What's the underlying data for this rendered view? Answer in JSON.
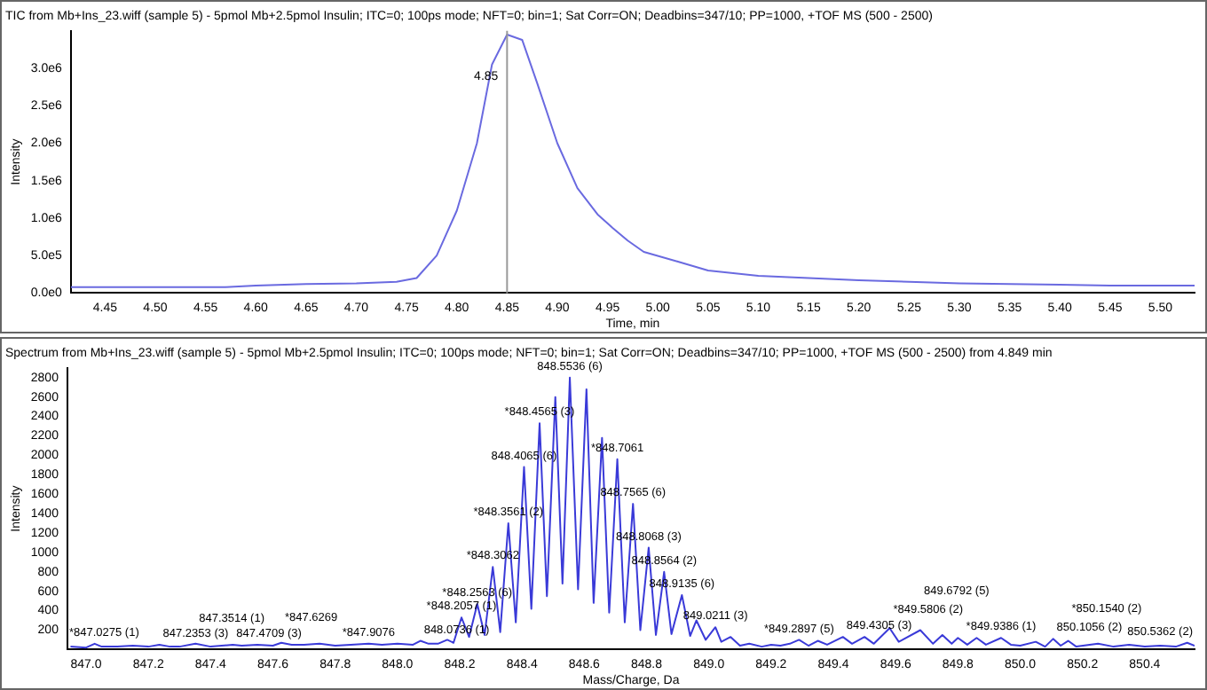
{
  "chart_data": [
    {
      "type": "line",
      "title": "TIC from Mb+Ins_23.wiff (sample 5) - 5pmol Mb+2.5pmol Insulin; ITC=0; 100ps mode; NFT=0; bin=1; Sat Corr=ON; Deadbins=347/10; PP=1000, +TOF MS (500 - 2500)",
      "xlabel": "Time, min",
      "ylabel": "Intensity",
      "x": [
        4.416,
        4.45,
        4.5,
        4.55,
        4.57,
        4.6,
        4.65,
        4.7,
        4.74,
        4.76,
        4.78,
        4.8,
        4.82,
        4.835,
        4.85,
        4.865,
        4.88,
        4.9,
        4.92,
        4.94,
        4.955,
        4.97,
        4.986,
        5.02,
        5.05,
        5.1,
        5.15,
        5.2,
        5.25,
        5.3,
        5.35,
        5.4,
        5.45,
        5.5,
        5.534
      ],
      "series": [
        {
          "color": "#6a6ae0",
          "values": [
            80000,
            80000,
            80000,
            80000,
            80000,
            100000,
            120000,
            130000,
            150000,
            200000,
            500000,
            1100000,
            2000000,
            3050000,
            3450000,
            3380000,
            2800000,
            2000000,
            1400000,
            1050000,
            870000,
            700000,
            550000,
            420000,
            300000,
            230000,
            200000,
            170000,
            150000,
            130000,
            120000,
            110000,
            100000,
            100000,
            100000
          ]
        }
      ],
      "xlim": [
        4.416,
        5.534
      ],
      "ylim": [
        0,
        3500000
      ],
      "xticks": [
        {
          "value": 4.45,
          "label": "4.45"
        },
        {
          "value": 4.5,
          "label": "4.50"
        },
        {
          "value": 4.55,
          "label": "4.55"
        },
        {
          "value": 4.6,
          "label": "4.60"
        },
        {
          "value": 4.65,
          "label": "4.65"
        },
        {
          "value": 4.7,
          "label": "4.70"
        },
        {
          "value": 4.75,
          "label": "4.75"
        },
        {
          "value": 4.8,
          "label": "4.80"
        },
        {
          "value": 4.85,
          "label": "4.85"
        },
        {
          "value": 4.9,
          "label": "4.90"
        },
        {
          "value": 4.95,
          "label": "4.95"
        },
        {
          "value": 5.0,
          "label": "5.00"
        },
        {
          "value": 5.05,
          "label": "5.05"
        },
        {
          "value": 5.1,
          "label": "5.10"
        },
        {
          "value": 5.15,
          "label": "5.15"
        },
        {
          "value": 5.2,
          "label": "5.20"
        },
        {
          "value": 5.25,
          "label": "5.25"
        },
        {
          "value": 5.3,
          "label": "5.30"
        },
        {
          "value": 5.35,
          "label": "5.35"
        },
        {
          "value": 5.4,
          "label": "5.40"
        },
        {
          "value": 5.45,
          "label": "5.45"
        },
        {
          "value": 5.5,
          "label": "5.50"
        }
      ],
      "yticks": [
        {
          "value": 0,
          "label": "0.0e0"
        },
        {
          "value": 500000,
          "label": "5.0e5"
        },
        {
          "value": 1000000,
          "label": "1.0e6"
        },
        {
          "value": 1500000,
          "label": "1.5e6"
        },
        {
          "value": 2000000,
          "label": "2.0e6"
        },
        {
          "value": 2500000,
          "label": "2.5e6"
        },
        {
          "value": 3000000,
          "label": "3.0e6"
        }
      ],
      "ref_lines": [
        {
          "axis": "x",
          "value": 4.85,
          "label": "4.85",
          "color": "#999999"
        }
      ],
      "grid": false,
      "legend": false,
      "marker": "none",
      "line_style": "solid"
    },
    {
      "type": "line",
      "title": "Spectrum from Mb+Ins_23.wiff (sample 5) - 5pmol Mb+2.5pmol Insulin; ITC=0; 100ps mode; NFT=0; bin=1; Sat Corr=ON; Deadbins=347/10; PP=1000, +TOF MS (500 - 2500) from 4.849 min",
      "xlabel": "Mass/Charge, Da",
      "ylabel": "Intensity",
      "x": [
        846.95,
        847.0,
        847.0275,
        847.05,
        847.1,
        847.15,
        847.2,
        847.2353,
        847.27,
        847.3,
        847.3514,
        847.4,
        847.4709,
        847.5,
        847.55,
        847.6,
        847.6269,
        847.66,
        847.7,
        847.75,
        847.8,
        847.85,
        847.9076,
        847.95,
        848.0,
        848.05,
        848.0736,
        848.1,
        848.13,
        848.16,
        848.18,
        848.2057,
        848.23,
        848.2563,
        848.28,
        848.3062,
        848.33,
        848.3561,
        848.38,
        848.4065,
        848.43,
        848.4565,
        848.48,
        848.507,
        848.53,
        848.5536,
        848.58,
        848.607,
        848.63,
        848.657,
        848.68,
        848.7061,
        848.73,
        848.7565,
        848.78,
        848.8068,
        848.83,
        848.8564,
        848.88,
        848.9135,
        848.94,
        848.96,
        848.99,
        849.0211,
        849.04,
        849.07,
        849.1,
        849.13,
        849.17,
        849.2,
        849.23,
        849.26,
        849.2897,
        849.32,
        849.35,
        849.38,
        849.4305,
        849.46,
        849.5,
        849.53,
        849.5806,
        849.61,
        849.6792,
        849.72,
        849.75,
        849.78,
        849.8,
        849.83,
        849.86,
        849.89,
        849.9386,
        849.97,
        850.0,
        850.05,
        850.08,
        850.1056,
        850.13,
        850.154,
        850.18,
        850.25,
        850.3,
        850.35,
        850.4,
        850.45,
        850.5,
        850.5362,
        850.56
      ],
      "series": [
        {
          "color": "#3a3ad8",
          "values": [
            30,
            20,
            60,
            30,
            30,
            40,
            30,
            50,
            30,
            30,
            60,
            30,
            50,
            40,
            50,
            40,
            70,
            50,
            50,
            60,
            40,
            50,
            60,
            50,
            60,
            50,
            90,
            60,
            60,
            100,
            70,
            330,
            130,
            470,
            150,
            850,
            180,
            1300,
            280,
            1880,
            420,
            2330,
            550,
            2600,
            680,
            2800,
            620,
            2680,
            480,
            2180,
            380,
            1960,
            280,
            1500,
            200,
            1050,
            150,
            800,
            160,
            560,
            140,
            300,
            100,
            230,
            80,
            130,
            40,
            60,
            30,
            50,
            40,
            60,
            100,
            40,
            90,
            50,
            130,
            60,
            130,
            60,
            220,
            80,
            200,
            60,
            150,
            60,
            120,
            50,
            120,
            50,
            120,
            50,
            40,
            80,
            30,
            110,
            40,
            90,
            30,
            60,
            30,
            50,
            30,
            40,
            30,
            70,
            40
          ]
        }
      ],
      "xlim": [
        846.94,
        850.56
      ],
      "ylim": [
        0,
        2900
      ],
      "xticks": [
        {
          "value": 847.0,
          "label": "847.0"
        },
        {
          "value": 847.2,
          "label": "847.2"
        },
        {
          "value": 847.4,
          "label": "847.4"
        },
        {
          "value": 847.6,
          "label": "847.6"
        },
        {
          "value": 847.8,
          "label": "847.8"
        },
        {
          "value": 848.0,
          "label": "848.0"
        },
        {
          "value": 848.2,
          "label": "848.2"
        },
        {
          "value": 848.4,
          "label": "848.4"
        },
        {
          "value": 848.6,
          "label": "848.6"
        },
        {
          "value": 848.8,
          "label": "848.8"
        },
        {
          "value": 849.0,
          "label": "849.0"
        },
        {
          "value": 849.2,
          "label": "849.2"
        },
        {
          "value": 849.4,
          "label": "849.4"
        },
        {
          "value": 849.6,
          "label": "849.6"
        },
        {
          "value": 849.8,
          "label": "849.8"
        },
        {
          "value": 850.0,
          "label": "850.0"
        },
        {
          "value": 850.2,
          "label": "850.2"
        },
        {
          "value": 850.4,
          "label": "850.4"
        }
      ],
      "yticks": [
        200,
        400,
        600,
        800,
        1000,
        1200,
        1400,
        1600,
        1800,
        2000,
        2200,
        2400,
        2600,
        2800
      ],
      "annotations": [
        {
          "text": "*847.0275 (1)",
          "x": 847.0275,
          "y": 60
        },
        {
          "text": "847.2353 (3)",
          "x": 847.2353,
          "y": 50
        },
        {
          "text": "847.3514 (1)",
          "x": 847.3514,
          "y": 60
        },
        {
          "text": "847.4709 (3)",
          "x": 847.4709,
          "y": 50
        },
        {
          "text": "*847.6269",
          "x": 847.6269,
          "y": 70
        },
        {
          "text": "*847.9076",
          "x": 847.9076,
          "y": 60
        },
        {
          "text": "848.0736 (1)",
          "x": 848.0736,
          "y": 90
        },
        {
          "text": "*848.2057 (1)",
          "x": 848.2057,
          "y": 330
        },
        {
          "text": "*848.2563 (6)",
          "x": 848.2563,
          "y": 470
        },
        {
          "text": "*848.3062",
          "x": 848.3062,
          "y": 850
        },
        {
          "text": "*848.3561 (2)",
          "x": 848.3561,
          "y": 1300
        },
        {
          "text": "848.4065 (6)",
          "x": 848.4065,
          "y": 1880
        },
        {
          "text": "*848.4565 (3)",
          "x": 848.4565,
          "y": 2330
        },
        {
          "text": "848.5536 (6)",
          "x": 848.5536,
          "y": 2800
        },
        {
          "text": "*848.7061",
          "x": 848.7061,
          "y": 1960
        },
        {
          "text": "848.7565 (6)",
          "x": 848.7565,
          "y": 1500
        },
        {
          "text": "848.8068 (3)",
          "x": 848.8068,
          "y": 1050
        },
        {
          "text": "848.8564 (2)",
          "x": 848.8564,
          "y": 800
        },
        {
          "text": "848.9135 (6)",
          "x": 848.9135,
          "y": 560
        },
        {
          "text": "849.0211 (3)",
          "x": 849.0211,
          "y": 230
        },
        {
          "text": "*849.2897 (5)",
          "x": 849.2897,
          "y": 100
        },
        {
          "text": "849.4305 (3)",
          "x": 849.4305,
          "y": 130
        },
        {
          "text": "*849.5806 (2)",
          "x": 849.5806,
          "y": 220
        },
        {
          "text": "849.6792 (5)",
          "x": 849.6792,
          "y": 200
        },
        {
          "text": "*849.9386 (1)",
          "x": 849.9386,
          "y": 120
        },
        {
          "text": "850.1056 (2)",
          "x": 850.1056,
          "y": 110
        },
        {
          "text": "*850.1540 (2)",
          "x": 850.154,
          "y": 90
        },
        {
          "text": "850.5362 (2)",
          "x": 850.5362,
          "y": 70
        }
      ],
      "grid": false,
      "legend": false,
      "marker": "none",
      "line_style": "solid"
    }
  ]
}
